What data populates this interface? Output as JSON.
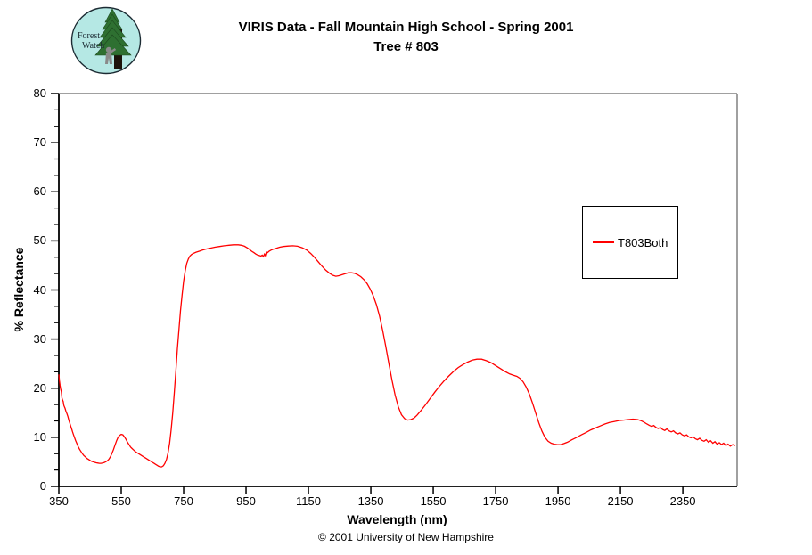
{
  "header": {
    "logo": {
      "line1": "Forest",
      "line2": "Watch"
    },
    "title_line1": "VIRIS Data - Fall Mountain High School - Spring 2001",
    "title_line2": "Tree # 803"
  },
  "footer": {
    "copyright": "© 2001 University of New Hampshire"
  },
  "colors": {
    "axis": "#000000",
    "plot_border": "#808080",
    "line": "#ff0000",
    "logo_bg": "#b5e8e4",
    "logo_tree": "#2e7031",
    "logo_tree_dark": "#1d4a1f",
    "logo_trunk": "#1c130b",
    "logo_person": "#8a8a8a",
    "logo_text": "#1c2b33"
  },
  "chart_data": {
    "type": "line",
    "title": "VIRIS Data - Fall Mountain High School - Spring 2001  Tree # 803",
    "xlabel": "Wavelength (nm)",
    "ylabel": "% Reflectance",
    "xlim": [
      350,
      2524
    ],
    "ylim": [
      0,
      80
    ],
    "x_ticks": [
      350,
      550,
      750,
      950,
      1150,
      1350,
      1550,
      1750,
      1950,
      2150,
      2350
    ],
    "y_ticks": [
      0,
      10,
      20,
      30,
      40,
      50,
      60,
      70,
      80
    ],
    "y_minor_per_major": 2,
    "grid": false,
    "legend_position": "right-upper",
    "series": [
      {
        "name": "T803Both",
        "color": "#ff0000",
        "points": [
          [
            350,
            22.8
          ],
          [
            352,
            21.5
          ],
          [
            354,
            20.5
          ],
          [
            356,
            19.8
          ],
          [
            358,
            19.3
          ],
          [
            360,
            18.0
          ],
          [
            362,
            17.6
          ],
          [
            364,
            17.3
          ],
          [
            366,
            16.5
          ],
          [
            368,
            16.2
          ],
          [
            370,
            15.9
          ],
          [
            373,
            15.2
          ],
          [
            376,
            14.8
          ],
          [
            379,
            14.2
          ],
          [
            382,
            13.5
          ],
          [
            385,
            12.9
          ],
          [
            388,
            12.3
          ],
          [
            391,
            11.7
          ],
          [
            394,
            11.1
          ],
          [
            397,
            10.5
          ],
          [
            400,
            10.0
          ],
          [
            404,
            9.3
          ],
          [
            408,
            8.7
          ],
          [
            412,
            8.1
          ],
          [
            416,
            7.6
          ],
          [
            420,
            7.2
          ],
          [
            425,
            6.7
          ],
          [
            430,
            6.3
          ],
          [
            435,
            6.0
          ],
          [
            440,
            5.7
          ],
          [
            445,
            5.5
          ],
          [
            450,
            5.3
          ],
          [
            455,
            5.1
          ],
          [
            460,
            5.0
          ],
          [
            465,
            4.9
          ],
          [
            470,
            4.8
          ],
          [
            475,
            4.75
          ],
          [
            480,
            4.7
          ],
          [
            485,
            4.7
          ],
          [
            490,
            4.75
          ],
          [
            495,
            4.85
          ],
          [
            500,
            5.0
          ],
          [
            505,
            5.2
          ],
          [
            510,
            5.5
          ],
          [
            515,
            6.0
          ],
          [
            520,
            6.7
          ],
          [
            525,
            7.5
          ],
          [
            530,
            8.4
          ],
          [
            535,
            9.3
          ],
          [
            540,
            10.0
          ],
          [
            545,
            10.4
          ],
          [
            550,
            10.6
          ],
          [
            555,
            10.5
          ],
          [
            560,
            10.1
          ],
          [
            565,
            9.6
          ],
          [
            570,
            9.0
          ],
          [
            575,
            8.5
          ],
          [
            580,
            8.0
          ],
          [
            585,
            7.7
          ],
          [
            590,
            7.4
          ],
          [
            595,
            7.1
          ],
          [
            600,
            6.9
          ],
          [
            610,
            6.5
          ],
          [
            620,
            6.1
          ],
          [
            630,
            5.7
          ],
          [
            640,
            5.3
          ],
          [
            650,
            4.9
          ],
          [
            655,
            4.7
          ],
          [
            660,
            4.5
          ],
          [
            665,
            4.3
          ],
          [
            670,
            4.1
          ],
          [
            675,
            4.0
          ],
          [
            680,
            4.0
          ],
          [
            685,
            4.2
          ],
          [
            690,
            4.7
          ],
          [
            695,
            5.5
          ],
          [
            700,
            6.8
          ],
          [
            705,
            8.8
          ],
          [
            710,
            11.5
          ],
          [
            715,
            15.0
          ],
          [
            720,
            19.0
          ],
          [
            725,
            23.5
          ],
          [
            730,
            28.0
          ],
          [
            735,
            32.0
          ],
          [
            740,
            35.8
          ],
          [
            745,
            39.0
          ],
          [
            750,
            41.8
          ],
          [
            755,
            43.9
          ],
          [
            760,
            45.4
          ],
          [
            765,
            46.3
          ],
          [
            770,
            46.9
          ],
          [
            775,
            47.2
          ],
          [
            780,
            47.4
          ],
          [
            790,
            47.7
          ],
          [
            800,
            47.9
          ],
          [
            810,
            48.1
          ],
          [
            820,
            48.3
          ],
          [
            835,
            48.5
          ],
          [
            850,
            48.7
          ],
          [
            865,
            48.85
          ],
          [
            880,
            49.0
          ],
          [
            895,
            49.1
          ],
          [
            910,
            49.2
          ],
          [
            925,
            49.2
          ],
          [
            935,
            49.1
          ],
          [
            945,
            48.9
          ],
          [
            953,
            48.6
          ],
          [
            960,
            48.3
          ],
          [
            968,
            47.9
          ],
          [
            975,
            47.6
          ],
          [
            982,
            47.3
          ],
          [
            988,
            47.1
          ],
          [
            993,
            47.0
          ],
          [
            998,
            46.9
          ],
          [
            1002,
            47.1
          ],
          [
            1006,
            46.8
          ],
          [
            1009,
            47.3
          ],
          [
            1012,
            47.0
          ],
          [
            1015,
            47.7
          ],
          [
            1019,
            47.6
          ],
          [
            1024,
            47.9
          ],
          [
            1030,
            48.1
          ],
          [
            1038,
            48.3
          ],
          [
            1048,
            48.5
          ],
          [
            1058,
            48.7
          ],
          [
            1070,
            48.85
          ],
          [
            1085,
            48.95
          ],
          [
            1100,
            49.0
          ],
          [
            1115,
            48.9
          ],
          [
            1130,
            48.6
          ],
          [
            1145,
            48.1
          ],
          [
            1158,
            47.4
          ],
          [
            1170,
            46.6
          ],
          [
            1182,
            45.7
          ],
          [
            1194,
            44.8
          ],
          [
            1206,
            44.0
          ],
          [
            1218,
            43.4
          ],
          [
            1228,
            43.0
          ],
          [
            1238,
            42.8
          ],
          [
            1248,
            42.9
          ],
          [
            1258,
            43.1
          ],
          [
            1268,
            43.3
          ],
          [
            1278,
            43.5
          ],
          [
            1288,
            43.5
          ],
          [
            1298,
            43.4
          ],
          [
            1308,
            43.1
          ],
          [
            1318,
            42.7
          ],
          [
            1328,
            42.1
          ],
          [
            1338,
            41.3
          ],
          [
            1348,
            40.2
          ],
          [
            1358,
            38.8
          ],
          [
            1368,
            37.0
          ],
          [
            1378,
            34.7
          ],
          [
            1388,
            31.8
          ],
          [
            1398,
            28.5
          ],
          [
            1408,
            25.0
          ],
          [
            1418,
            21.6
          ],
          [
            1428,
            18.6
          ],
          [
            1438,
            16.2
          ],
          [
            1448,
            14.6
          ],
          [
            1458,
            13.8
          ],
          [
            1468,
            13.5
          ],
          [
            1478,
            13.6
          ],
          [
            1488,
            13.9
          ],
          [
            1498,
            14.5
          ],
          [
            1510,
            15.4
          ],
          [
            1525,
            16.6
          ],
          [
            1540,
            17.9
          ],
          [
            1555,
            19.2
          ],
          [
            1570,
            20.4
          ],
          [
            1585,
            21.5
          ],
          [
            1600,
            22.5
          ],
          [
            1615,
            23.4
          ],
          [
            1630,
            24.2
          ],
          [
            1645,
            24.8
          ],
          [
            1660,
            25.3
          ],
          [
            1675,
            25.7
          ],
          [
            1690,
            25.9
          ],
          [
            1705,
            25.9
          ],
          [
            1720,
            25.6
          ],
          [
            1735,
            25.2
          ],
          [
            1750,
            24.6
          ],
          [
            1765,
            24.0
          ],
          [
            1780,
            23.4
          ],
          [
            1795,
            22.9
          ],
          [
            1808,
            22.6
          ],
          [
            1818,
            22.4
          ],
          [
            1828,
            22.0
          ],
          [
            1838,
            21.3
          ],
          [
            1848,
            20.2
          ],
          [
            1858,
            18.8
          ],
          [
            1868,
            17.0
          ],
          [
            1878,
            15.0
          ],
          [
            1888,
            13.0
          ],
          [
            1898,
            11.3
          ],
          [
            1908,
            10.0
          ],
          [
            1918,
            9.2
          ],
          [
            1928,
            8.8
          ],
          [
            1938,
            8.6
          ],
          [
            1948,
            8.5
          ],
          [
            1958,
            8.5
          ],
          [
            1968,
            8.7
          ],
          [
            1980,
            9.0
          ],
          [
            1995,
            9.5
          ],
          [
            2010,
            10.0
          ],
          [
            2025,
            10.5
          ],
          [
            2040,
            11.0
          ],
          [
            2055,
            11.5
          ],
          [
            2070,
            11.9
          ],
          [
            2085,
            12.3
          ],
          [
            2100,
            12.7
          ],
          [
            2115,
            13.0
          ],
          [
            2130,
            13.2
          ],
          [
            2145,
            13.4
          ],
          [
            2160,
            13.5
          ],
          [
            2175,
            13.6
          ],
          [
            2190,
            13.7
          ],
          [
            2205,
            13.6
          ],
          [
            2215,
            13.4
          ],
          [
            2225,
            13.1
          ],
          [
            2235,
            12.7
          ],
          [
            2243,
            12.4
          ],
          [
            2250,
            12.2
          ],
          [
            2257,
            12.4
          ],
          [
            2264,
            12.0
          ],
          [
            2271,
            11.8
          ],
          [
            2278,
            12.0
          ],
          [
            2285,
            11.6
          ],
          [
            2292,
            11.4
          ],
          [
            2299,
            11.7
          ],
          [
            2306,
            11.3
          ],
          [
            2313,
            11.1
          ],
          [
            2320,
            11.3
          ],
          [
            2327,
            10.9
          ],
          [
            2334,
            10.7
          ],
          [
            2341,
            10.9
          ],
          [
            2348,
            10.5
          ],
          [
            2355,
            10.3
          ],
          [
            2362,
            10.5
          ],
          [
            2369,
            10.1
          ],
          [
            2376,
            9.9
          ],
          [
            2383,
            10.1
          ],
          [
            2390,
            9.7
          ],
          [
            2397,
            9.5
          ],
          [
            2404,
            9.8
          ],
          [
            2411,
            9.4
          ],
          [
            2418,
            9.2
          ],
          [
            2425,
            9.5
          ],
          [
            2432,
            9.0
          ],
          [
            2439,
            9.3
          ],
          [
            2446,
            8.8
          ],
          [
            2453,
            9.1
          ],
          [
            2460,
            8.6
          ],
          [
            2467,
            8.9
          ],
          [
            2474,
            8.5
          ],
          [
            2481,
            8.8
          ],
          [
            2488,
            8.3
          ],
          [
            2495,
            8.6
          ],
          [
            2502,
            8.2
          ],
          [
            2510,
            8.5
          ],
          [
            2518,
            8.3
          ]
        ]
      }
    ]
  }
}
